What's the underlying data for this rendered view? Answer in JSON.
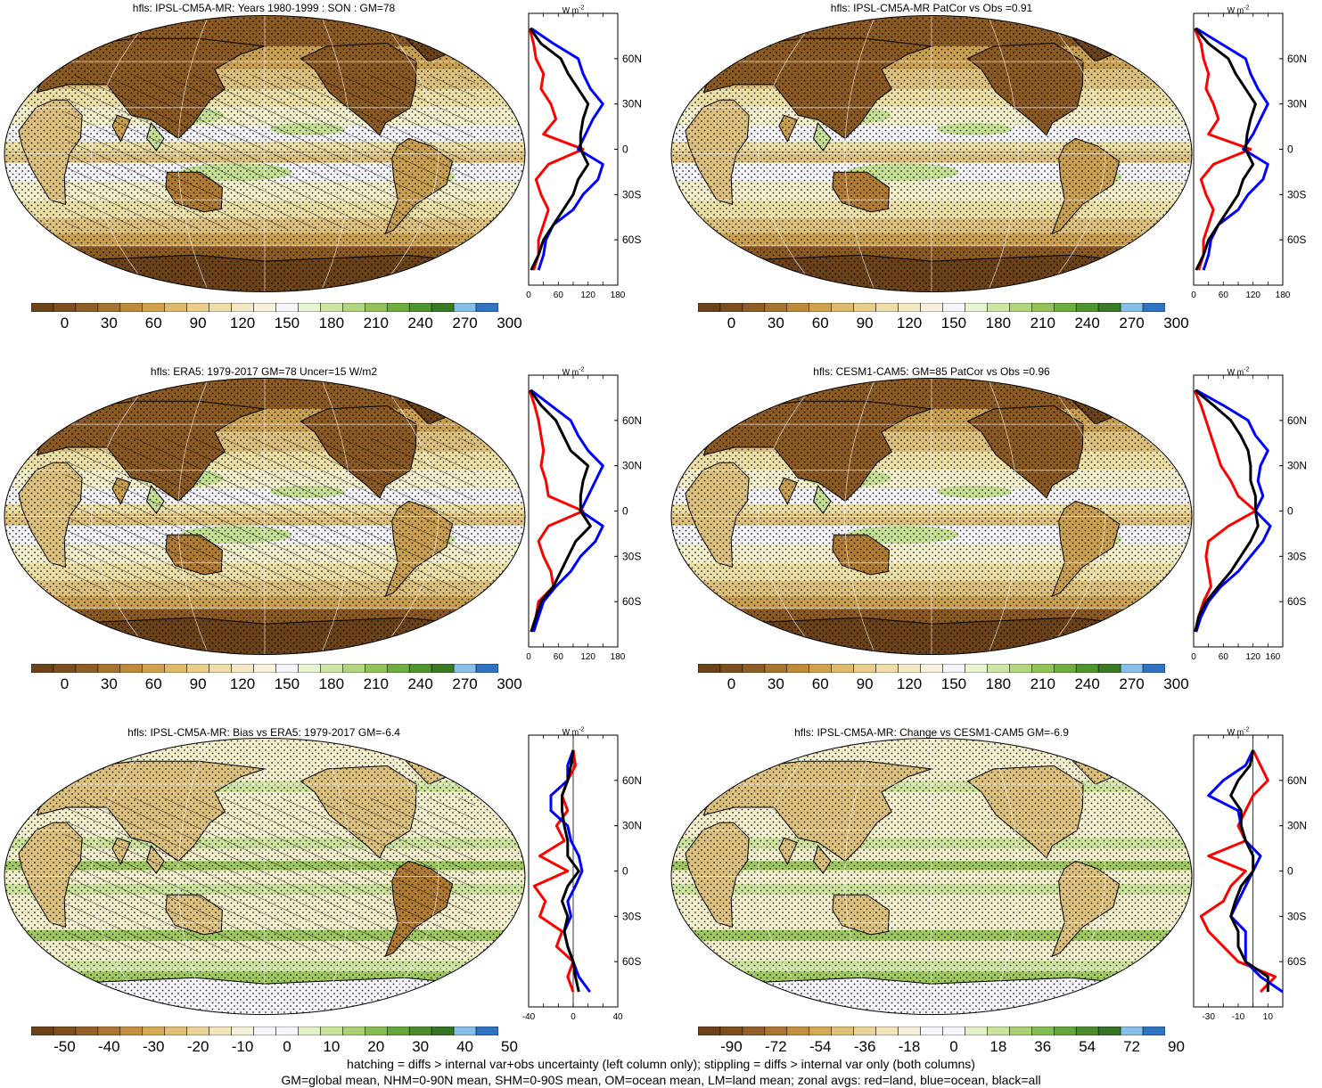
{
  "colors": {
    "brown_dark": "#6b4219",
    "brown": "#8b5a23",
    "brown_mid": "#b07b33",
    "tan": "#c9a052",
    "tan_light": "#dcc07e",
    "cream": "#ece0a6",
    "cream_light": "#f4efcd",
    "white_ish": "#f5f5fb",
    "green_light": "#c5e094",
    "green": "#8fc04e",
    "green_dark": "#4a8a2c",
    "blue_light": "#86c0ea",
    "blue": "#2f73c3",
    "zonal_land": "#ff0000",
    "zonal_ocean": "#0000ff",
    "zonal_all": "#000000"
  },
  "palette_absolute": [
    "#6b4219",
    "#7d4f1f",
    "#8f5d26",
    "#a77330",
    "#bf8a3a",
    "#d2a24b",
    "#dfba6a",
    "#e8cd8b",
    "#efdca9",
    "#f4e8c4",
    "#f8f1de",
    "#f5f5fb",
    "#e8f3d0",
    "#cfe5a5",
    "#b1d67d",
    "#91c359",
    "#6fae3e",
    "#4f942e",
    "#3a7a25",
    "#86c0ea",
    "#2f73c3"
  ],
  "palette_diff": [
    "#6b4219",
    "#7d4f1f",
    "#93602a",
    "#ab7634",
    "#c29040",
    "#d4a955",
    "#e0c077",
    "#e9d39a",
    "#f1e3bb",
    "#f6efd9",
    "#f5f5fb",
    "#f5f5fb",
    "#e2f0c7",
    "#c8e29a",
    "#a9d173",
    "#86bd52",
    "#63a63a",
    "#4a8c2e",
    "#377325",
    "#86c0ea",
    "#2f73c3"
  ],
  "panels": [
    {
      "title": "hfls: IPSL-CM5A-MR: Years 1980-1999 : SON : GM=78",
      "colorbar_labels": [
        "0",
        "30",
        "60",
        "90",
        "120",
        "150",
        "180",
        "210",
        "240",
        "270",
        "300"
      ],
      "zonal_xticks": [
        "0",
        "60",
        "120",
        "180"
      ],
      "zonal_xlim": [
        0,
        180
      ],
      "zonal_lat_labels": [
        "60N",
        "30N",
        "0",
        "30S",
        "60S"
      ],
      "zonal_units": "W m-2",
      "zonal_units_base": "W m",
      "zonal_units_sup": "-2",
      "hatching": true,
      "chart_data": {
        "type": "line",
        "xlabel": "",
        "ylabel": "",
        "y_lat": [
          80,
          70,
          60,
          50,
          40,
          30,
          20,
          10,
          0,
          -10,
          -20,
          -30,
          -40,
          -50,
          -60,
          -70,
          -80
        ],
        "series": [
          {
            "name": "land",
            "values": [
              2,
              10,
              15,
              30,
              25,
              45,
              55,
              30,
              110,
              40,
              15,
              25,
              40,
              30,
              20,
              20,
              10
            ]
          },
          {
            "name": "ocean",
            "values": [
              5,
              50,
              100,
              110,
              125,
              150,
              130,
              115,
              100,
              150,
              140,
              110,
              90,
              50,
              35,
              30,
              20
            ]
          },
          {
            "name": "all",
            "values": [
              3,
              25,
              65,
              80,
              100,
              120,
              110,
              105,
              105,
              120,
              100,
              90,
              70,
              50,
              30,
              20,
              5
            ]
          }
        ]
      }
    },
    {
      "title": "hfls: IPSL-CM5A-MR PatCor vs Obs =0.91",
      "colorbar_labels": [
        "0",
        "30",
        "60",
        "90",
        "120",
        "150",
        "180",
        "210",
        "240",
        "270",
        "300"
      ],
      "zonal_xticks": [
        "0",
        "60",
        "120",
        "180"
      ],
      "zonal_xlim": [
        0,
        180
      ],
      "zonal_lat_labels": [
        "60N",
        "30N",
        "0",
        "30S",
        "60S"
      ],
      "zonal_units": "W m-2",
      "zonal_units_base": "W m",
      "zonal_units_sup": "-2",
      "hatching": false,
      "chart_data": {
        "type": "line",
        "xlabel": "",
        "ylabel": "",
        "y_lat": [
          80,
          70,
          60,
          50,
          40,
          30,
          20,
          10,
          0,
          -10,
          -20,
          -30,
          -40,
          -50,
          -60,
          -70,
          -80
        ],
        "series": [
          {
            "name": "land",
            "values": [
              2,
              15,
              20,
              30,
              25,
              40,
              50,
              30,
              115,
              40,
              15,
              25,
              40,
              30,
              20,
              20,
              10
            ]
          },
          {
            "name": "ocean",
            "values": [
              5,
              55,
              105,
              115,
              130,
              150,
              135,
              120,
              100,
              150,
              140,
              110,
              90,
              50,
              35,
              30,
              20
            ]
          },
          {
            "name": "all",
            "values": [
              3,
              30,
              70,
              85,
              105,
              125,
              115,
              108,
              105,
              120,
              100,
              90,
              70,
              50,
              30,
              20,
              5
            ]
          }
        ]
      }
    },
    {
      "title": "hfls: ERA5: 1979-2017 GM=78 Uncer=15 W/m2",
      "colorbar_labels": [
        "0",
        "30",
        "60",
        "90",
        "120",
        "150",
        "180",
        "210",
        "240",
        "270",
        "300"
      ],
      "zonal_xticks": [
        "0",
        "60",
        "120",
        "180"
      ],
      "zonal_xlim": [
        0,
        180
      ],
      "zonal_lat_labels": [
        "60N",
        "30N",
        "0",
        "30S",
        "60S"
      ],
      "zonal_units": "W m-2",
      "zonal_units_base": "W m",
      "zonal_units_sup": "-2",
      "hatching": true,
      "chart_data": {
        "type": "line",
        "xlabel": "",
        "ylabel": "",
        "y_lat": [
          80,
          70,
          60,
          50,
          40,
          30,
          20,
          10,
          0,
          -10,
          -20,
          -30,
          -40,
          -50,
          -60,
          -70,
          -80
        ],
        "series": [
          {
            "name": "land",
            "values": [
              2,
              12,
              20,
              25,
              30,
              25,
              35,
              40,
              110,
              40,
              20,
              30,
              45,
              50,
              20,
              15,
              5
            ]
          },
          {
            "name": "ocean",
            "values": [
              5,
              45,
              85,
              100,
              120,
              150,
              135,
              120,
              105,
              150,
              135,
              105,
              85,
              55,
              30,
              20,
              10
            ]
          },
          {
            "name": "all",
            "values": [
              3,
              25,
              55,
              70,
              85,
              120,
              110,
              105,
              105,
              125,
              95,
              80,
              65,
              50,
              25,
              15,
              5
            ]
          }
        ]
      }
    },
    {
      "title": "hfls: CESM1-CAM5: GM=85 PatCor vs Obs =0.96",
      "colorbar_labels": [
        "0",
        "30",
        "60",
        "90",
        "120",
        "150",
        "180",
        "210",
        "240",
        "270",
        "300"
      ],
      "zonal_xticks": [
        "0",
        "60",
        "120",
        "160"
      ],
      "zonal_xlim": [
        0,
        180
      ],
      "zonal_lat_labels": [
        "60N",
        "30N",
        "0",
        "30S",
        "60S"
      ],
      "zonal_units": "W m-2",
      "zonal_units_base": "W m",
      "zonal_units_sup": "-2",
      "hatching": false,
      "chart_data": {
        "type": "line",
        "xlabel": "",
        "ylabel": "",
        "y_lat": [
          80,
          70,
          60,
          50,
          40,
          30,
          20,
          10,
          0,
          -10,
          -20,
          -30,
          -40,
          -50,
          -60,
          -70,
          -80
        ],
        "series": [
          {
            "name": "land",
            "values": [
              2,
              15,
              25,
              35,
              45,
              55,
              75,
              90,
              125,
              70,
              30,
              25,
              30,
              35,
              20,
              10,
              5
            ]
          },
          {
            "name": "ocean",
            "values": [
              5,
              60,
              110,
              125,
              150,
              135,
              130,
              140,
              125,
              155,
              140,
              115,
              90,
              55,
              30,
              15,
              5
            ]
          },
          {
            "name": "all",
            "values": [
              3,
              40,
              75,
              95,
              110,
              115,
              115,
              125,
              125,
              130,
              115,
              95,
              75,
              50,
              25,
              10,
              3
            ]
          }
        ]
      }
    },
    {
      "title": "hfls: IPSL-CM5A-MR: Bias vs ERA5: 1979-2017  GM=-6.4",
      "colorbar_labels": [
        "-50",
        "-40",
        "-30",
        "-20",
        "-10",
        "0",
        "10",
        "20",
        "30",
        "40",
        "50"
      ],
      "zonal_xticks": [
        "-40",
        "0",
        "40"
      ],
      "zonal_xlim": [
        -40,
        40
      ],
      "zonal_lat_labels": [
        "60N",
        "30N",
        "0",
        "30S",
        "60S"
      ],
      "zonal_units": "W m-2",
      "zonal_units_base": "W m",
      "zonal_units_sup": "-2",
      "hatching": true,
      "chart_data": {
        "type": "line",
        "xlabel": "",
        "ylabel": "",
        "y_lat": [
          80,
          70,
          60,
          50,
          40,
          30,
          20,
          10,
          0,
          -10,
          -20,
          -30,
          -40,
          -50,
          -60,
          -70,
          -80
        ],
        "series": [
          {
            "name": "land",
            "values": [
              0,
              2,
              -5,
              -10,
              -5,
              -15,
              -8,
              -30,
              -5,
              -35,
              -25,
              -30,
              -10,
              -15,
              0,
              -5,
              0
            ]
          },
          {
            "name": "ocean",
            "values": [
              0,
              -5,
              -5,
              -20,
              -20,
              -5,
              -2,
              5,
              8,
              2,
              -5,
              -2,
              -8,
              -5,
              0,
              5,
              15
            ]
          },
          {
            "name": "all",
            "values": [
              0,
              -2,
              -5,
              -10,
              -10,
              -8,
              -5,
              -5,
              5,
              -5,
              -10,
              -5,
              -8,
              -5,
              0,
              2,
              5
            ]
          }
        ]
      }
    },
    {
      "title": "hfls: IPSL-CM5A-MR: Change vs CESM1-CAM5 GM=-6.9",
      "colorbar_labels": [
        "-90",
        "-72",
        "-54",
        "-36",
        "-18",
        "0",
        "18",
        "36",
        "54",
        "72",
        "90"
      ],
      "zonal_xticks": [
        "-30",
        "-10",
        "10"
      ],
      "zonal_xlim": [
        -40,
        20
      ],
      "zonal_lat_labels": [
        "60N",
        "30N",
        "0",
        "30S",
        "60S"
      ],
      "zonal_units": "W m-2",
      "zonal_units_base": "W m",
      "zonal_units_sup": "-2",
      "hatching": false,
      "chart_data": {
        "type": "line",
        "xlabel": "",
        "ylabel": "",
        "y_lat": [
          80,
          70,
          60,
          50,
          40,
          30,
          20,
          10,
          0,
          -10,
          -20,
          -30,
          -40,
          -50,
          -60,
          -70,
          -80
        ],
        "series": [
          {
            "name": "land",
            "values": [
              0,
              5,
              10,
              0,
              -5,
              -10,
              -5,
              -30,
              -5,
              -15,
              -20,
              -35,
              -30,
              -20,
              -10,
              15,
              5
            ]
          },
          {
            "name": "ocean",
            "values": [
              0,
              -5,
              -20,
              -30,
              -10,
              -8,
              -5,
              5,
              0,
              -5,
              -10,
              -15,
              -5,
              -5,
              -5,
              5,
              20
            ]
          },
          {
            "name": "all",
            "values": [
              0,
              -2,
              -10,
              -15,
              -8,
              -8,
              -5,
              0,
              0,
              -8,
              -12,
              -15,
              -10,
              -10,
              -5,
              10,
              10
            ]
          }
        ]
      }
    }
  ],
  "footer_line1": "hatching = diffs > internal var+obs uncertainty (left column only); stippling = diffs > internal var only (both columns)",
  "footer_line2": "GM=global mean, NHM=0-90N mean, SHM=0-90S mean, OM=ocean mean, LM=land mean; zonal avgs: red=land, blue=ocean, black=all"
}
